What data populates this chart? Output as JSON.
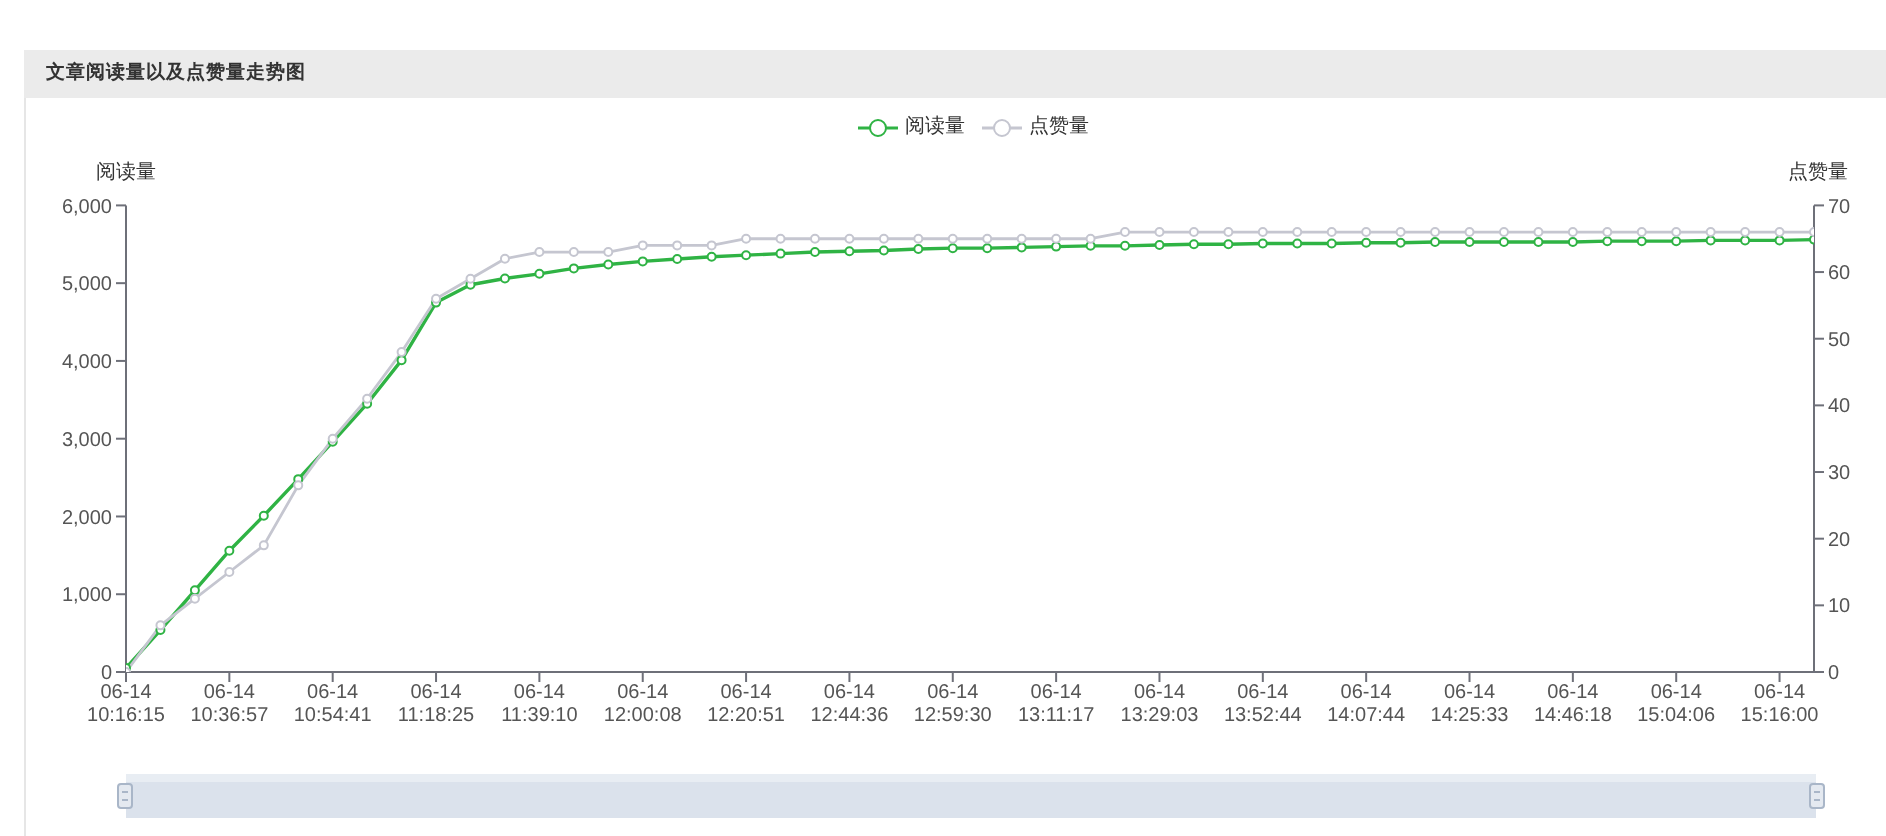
{
  "chart_data": {
    "type": "line",
    "title": "文章阅读量以及点赞量走势图",
    "ylabel": "阅读量",
    "y2label": "点赞量",
    "categories": [
      "06-14\n10:16:15",
      null,
      null,
      "06-14\n10:36:57",
      null,
      null,
      "06-14\n10:54:41",
      null,
      null,
      "06-14\n11:18:25",
      null,
      null,
      "06-14\n11:39:10",
      null,
      null,
      "06-14\n12:00:08",
      null,
      null,
      "06-14\n12:20:51",
      null,
      null,
      "06-14\n12:44:36",
      null,
      null,
      "06-14\n12:59:30",
      null,
      null,
      "06-14\n13:11:17",
      null,
      null,
      "06-14\n13:29:03",
      null,
      null,
      "06-14\n13:52:44",
      null,
      null,
      "06-14\n14:07:44",
      null,
      null,
      "06-14\n14:25:33",
      null,
      null,
      "06-14\n14:46:18",
      null,
      null,
      "06-14\n15:04:06",
      null,
      null,
      "06-14\n15:16:00",
      null
    ],
    "series": [
      {
        "name": "阅读量",
        "color": "#2fb344",
        "values": [
          50,
          540,
          1050,
          1560,
          2010,
          2480,
          2960,
          3450,
          4010,
          4750,
          4980,
          5060,
          5120,
          5190,
          5240,
          5280,
          5310,
          5340,
          5360,
          5380,
          5400,
          5410,
          5420,
          5440,
          5450,
          5450,
          5460,
          5470,
          5480,
          5480,
          5490,
          5500,
          5500,
          5510,
          5510,
          5510,
          5520,
          5520,
          5530,
          5530,
          5530,
          5530,
          5530,
          5540,
          5540,
          5540,
          5550,
          5550,
          5550,
          5560
        ]
      },
      {
        "name": "点赞量",
        "color": "#c5c6d0",
        "axis": "y2",
        "values": [
          0,
          7,
          11,
          15,
          19,
          28,
          35,
          41,
          48,
          56,
          59,
          62,
          63,
          63,
          63,
          64,
          64,
          64,
          65,
          65,
          65,
          65,
          65,
          65,
          65,
          65,
          65,
          65,
          65,
          66,
          66,
          66,
          66,
          66,
          66,
          66,
          66,
          66,
          66,
          66,
          66,
          66,
          66,
          66,
          66,
          66,
          66,
          66,
          66,
          66
        ]
      }
    ],
    "ylim": [
      0,
      6000
    ],
    "yticks": [
      0,
      {
        "value": 1000,
        "label": "1,000"
      },
      {
        "value": 2000,
        "label": "2,000"
      },
      {
        "value": 3000,
        "label": "3,000"
      },
      {
        "value": 4000,
        "label": "4,000"
      },
      {
        "value": 5000,
        "label": "5,000"
      },
      {
        "value": 6000,
        "label": "6,000"
      }
    ],
    "y2lim": [
      0,
      70
    ],
    "y2ticks": [
      0,
      10,
      20,
      30,
      40,
      50,
      60,
      70
    ],
    "legend": "top",
    "marker": "circle",
    "line_style": "solid"
  }
}
